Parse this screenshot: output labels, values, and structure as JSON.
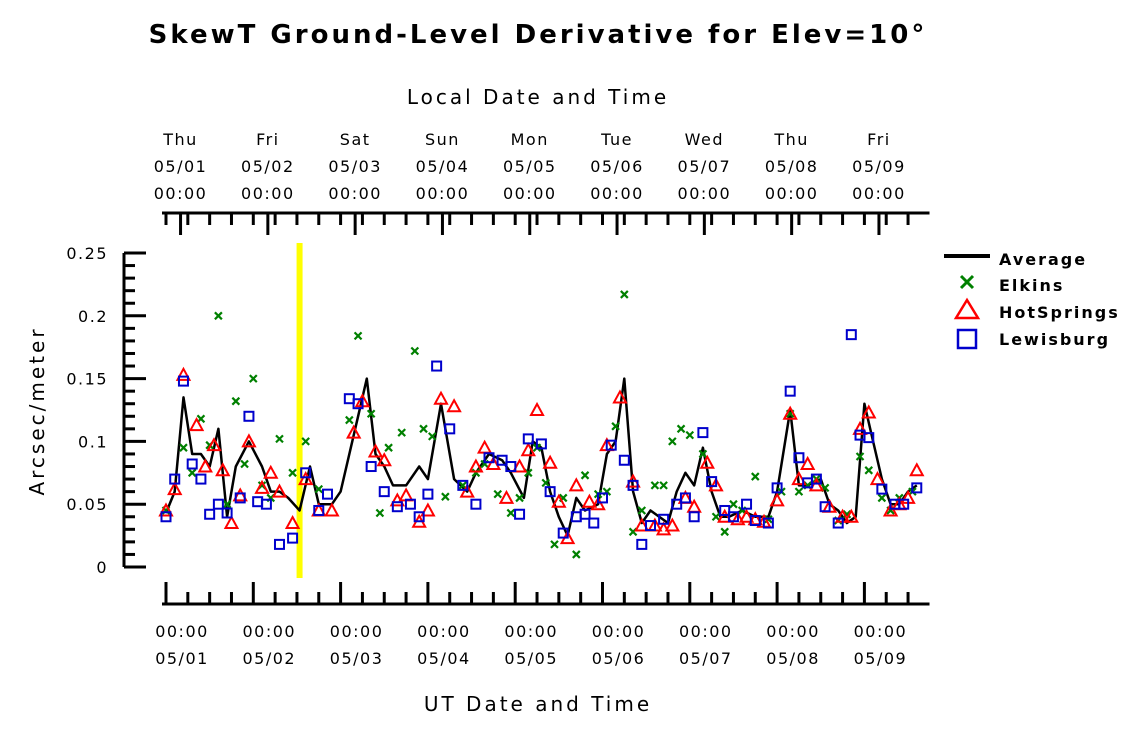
{
  "chart_data": {
    "type": "scatter",
    "title": "SkewT Ground-Level Derivative for Elev=10°",
    "xlabel": "UT Date and Time",
    "xlabel_top": "Local Date and Time",
    "ylabel": "Arcsec/meter",
    "ylim": [
      0,
      0.25
    ],
    "yticks": [
      "0",
      "0.05",
      "0.1",
      "0.15",
      "0.2",
      "0.25"
    ],
    "xlim_days": [
      0,
      8.7
    ],
    "grid": false,
    "legend_position": "right",
    "x_bottom_labels": [
      {
        "time": "00:00",
        "date": "05/01"
      },
      {
        "time": "00:00",
        "date": "05/02"
      },
      {
        "time": "00:00",
        "date": "05/03"
      },
      {
        "time": "00:00",
        "date": "05/04"
      },
      {
        "time": "00:00",
        "date": "05/05"
      },
      {
        "time": "00:00",
        "date": "05/06"
      },
      {
        "time": "00:00",
        "date": "05/07"
      },
      {
        "time": "00:00",
        "date": "05/08"
      },
      {
        "time": "00:00",
        "date": "05/09"
      }
    ],
    "x_top_labels": [
      {
        "day": "Thu",
        "date": "05/01",
        "time": "00:00"
      },
      {
        "day": "Fri",
        "date": "05/02",
        "time": "00:00"
      },
      {
        "day": "Sat",
        "date": "05/03",
        "time": "00:00"
      },
      {
        "day": "Sun",
        "date": "05/04",
        "time": "00:00"
      },
      {
        "day": "Mon",
        "date": "05/05",
        "time": "00:00"
      },
      {
        "day": "Tue",
        "date": "05/06",
        "time": "00:00"
      },
      {
        "day": "Wed",
        "date": "05/07",
        "time": "00:00"
      },
      {
        "day": "Thu",
        "date": "05/08",
        "time": "00:00"
      },
      {
        "day": "Fri",
        "date": "05/09",
        "time": "00:00"
      }
    ],
    "marker_line": {
      "x": 1.53,
      "color": "#ffff00"
    },
    "series": [
      {
        "name": "Average",
        "style": "line",
        "color": "#000000",
        "points": [
          [
            0,
            0.043
          ],
          [
            0.1,
            0.06
          ],
          [
            0.2,
            0.135
          ],
          [
            0.3,
            0.09
          ],
          [
            0.4,
            0.09
          ],
          [
            0.5,
            0.08
          ],
          [
            0.6,
            0.11
          ],
          [
            0.7,
            0.04
          ],
          [
            0.8,
            0.08
          ],
          [
            0.95,
            0.1
          ],
          [
            1.1,
            0.08
          ],
          [
            1.2,
            0.06
          ],
          [
            1.3,
            0.06
          ],
          [
            1.4,
            0.055
          ],
          [
            1.53,
            0.045
          ],
          [
            1.65,
            0.08
          ],
          [
            1.75,
            0.05
          ],
          [
            1.9,
            0.05
          ],
          [
            2.0,
            0.06
          ],
          [
            2.2,
            0.12
          ],
          [
            2.3,
            0.15
          ],
          [
            2.4,
            0.09
          ],
          [
            2.5,
            0.08
          ],
          [
            2.6,
            0.065
          ],
          [
            2.75,
            0.065
          ],
          [
            2.9,
            0.08
          ],
          [
            3.0,
            0.07
          ],
          [
            3.15,
            0.13
          ],
          [
            3.3,
            0.07
          ],
          [
            3.45,
            0.06
          ],
          [
            3.55,
            0.075
          ],
          [
            3.7,
            0.09
          ],
          [
            3.85,
            0.085
          ],
          [
            3.95,
            0.075
          ],
          [
            4.1,
            0.055
          ],
          [
            4.2,
            0.1
          ],
          [
            4.3,
            0.095
          ],
          [
            4.4,
            0.06
          ],
          [
            4.5,
            0.04
          ],
          [
            4.6,
            0.025
          ],
          [
            4.7,
            0.055
          ],
          [
            4.8,
            0.045
          ],
          [
            4.95,
            0.05
          ],
          [
            5.05,
            0.09
          ],
          [
            5.15,
            0.1
          ],
          [
            5.25,
            0.15
          ],
          [
            5.35,
            0.06
          ],
          [
            5.45,
            0.035
          ],
          [
            5.55,
            0.045
          ],
          [
            5.65,
            0.04
          ],
          [
            5.75,
            0.035
          ],
          [
            5.85,
            0.06
          ],
          [
            5.95,
            0.075
          ],
          [
            6.05,
            0.065
          ],
          [
            6.15,
            0.095
          ],
          [
            6.25,
            0.06
          ],
          [
            6.35,
            0.04
          ],
          [
            6.45,
            0.04
          ],
          [
            6.6,
            0.045
          ],
          [
            6.75,
            0.04
          ],
          [
            6.9,
            0.04
          ],
          [
            7.0,
            0.06
          ],
          [
            7.15,
            0.125
          ],
          [
            7.25,
            0.065
          ],
          [
            7.35,
            0.065
          ],
          [
            7.5,
            0.07
          ],
          [
            7.6,
            0.05
          ],
          [
            7.7,
            0.045
          ],
          [
            7.8,
            0.035
          ],
          [
            7.9,
            0.04
          ],
          [
            8.0,
            0.13
          ],
          [
            8.1,
            0.1
          ],
          [
            8.2,
            0.07
          ],
          [
            8.3,
            0.05
          ],
          [
            8.4,
            0.05
          ],
          [
            8.5,
            0.06
          ],
          [
            8.6,
            0.065
          ]
        ]
      },
      {
        "name": "Elkins",
        "style": "x",
        "color": "#008000",
        "points": [
          [
            0.0,
            0.045
          ],
          [
            0.2,
            0.095
          ],
          [
            0.3,
            0.075
          ],
          [
            0.4,
            0.118
          ],
          [
            0.5,
            0.097
          ],
          [
            0.6,
            0.2
          ],
          [
            0.7,
            0.05
          ],
          [
            0.8,
            0.132
          ],
          [
            0.9,
            0.082
          ],
          [
            1.0,
            0.15
          ],
          [
            1.1,
            0.065
          ],
          [
            1.2,
            0.055
          ],
          [
            1.3,
            0.102
          ],
          [
            1.45,
            0.075
          ],
          [
            1.6,
            0.1
          ],
          [
            1.75,
            0.062
          ],
          [
            2.1,
            0.117
          ],
          [
            2.2,
            0.184
          ],
          [
            2.35,
            0.122
          ],
          [
            2.45,
            0.043
          ],
          [
            2.55,
            0.095
          ],
          [
            2.7,
            0.107
          ],
          [
            2.85,
            0.172
          ],
          [
            2.95,
            0.11
          ],
          [
            3.05,
            0.104
          ],
          [
            3.2,
            0.056
          ],
          [
            3.4,
            0.065
          ],
          [
            3.55,
            0.075
          ],
          [
            3.65,
            0.082
          ],
          [
            3.8,
            0.058
          ],
          [
            3.95,
            0.043
          ],
          [
            4.05,
            0.055
          ],
          [
            4.15,
            0.075
          ],
          [
            4.25,
            0.095
          ],
          [
            4.35,
            0.067
          ],
          [
            4.45,
            0.018
          ],
          [
            4.55,
            0.055
          ],
          [
            4.7,
            0.01
          ],
          [
            4.8,
            0.073
          ],
          [
            4.95,
            0.058
          ],
          [
            5.05,
            0.06
          ],
          [
            5.15,
            0.112
          ],
          [
            5.25,
            0.217
          ],
          [
            5.35,
            0.028
          ],
          [
            5.45,
            0.045
          ],
          [
            5.6,
            0.065
          ],
          [
            5.7,
            0.065
          ],
          [
            5.8,
            0.1
          ],
          [
            5.9,
            0.11
          ],
          [
            6.0,
            0.105
          ],
          [
            6.15,
            0.09
          ],
          [
            6.3,
            0.04
          ],
          [
            6.4,
            0.028
          ],
          [
            6.5,
            0.05
          ],
          [
            6.6,
            0.045
          ],
          [
            6.75,
            0.072
          ],
          [
            6.9,
            0.038
          ],
          [
            7.05,
            0.06
          ],
          [
            7.15,
            0.122
          ],
          [
            7.25,
            0.06
          ],
          [
            7.35,
            0.065
          ],
          [
            7.45,
            0.07
          ],
          [
            7.55,
            0.063
          ],
          [
            7.7,
            0.037
          ],
          [
            7.8,
            0.042
          ],
          [
            7.95,
            0.088
          ],
          [
            8.05,
            0.077
          ],
          [
            8.2,
            0.055
          ],
          [
            8.3,
            0.045
          ],
          [
            8.4,
            0.055
          ],
          [
            8.55,
            0.06
          ]
        ]
      },
      {
        "name": "HotSprings",
        "style": "triangle",
        "color": "#ff0000",
        "points": [
          [
            0.0,
            0.045
          ],
          [
            0.1,
            0.062
          ],
          [
            0.2,
            0.153
          ],
          [
            0.35,
            0.113
          ],
          [
            0.45,
            0.08
          ],
          [
            0.55,
            0.097
          ],
          [
            0.65,
            0.077
          ],
          [
            0.75,
            0.035
          ],
          [
            0.85,
            0.057
          ],
          [
            0.95,
            0.1
          ],
          [
            1.1,
            0.063
          ],
          [
            1.2,
            0.075
          ],
          [
            1.3,
            0.06
          ],
          [
            1.45,
            0.035
          ],
          [
            1.6,
            0.07
          ],
          [
            1.75,
            0.045
          ],
          [
            1.9,
            0.045
          ],
          [
            2.15,
            0.107
          ],
          [
            2.25,
            0.132
          ],
          [
            2.4,
            0.092
          ],
          [
            2.5,
            0.085
          ],
          [
            2.65,
            0.053
          ],
          [
            2.75,
            0.057
          ],
          [
            2.9,
            0.036
          ],
          [
            3.0,
            0.045
          ],
          [
            3.15,
            0.134
          ],
          [
            3.3,
            0.128
          ],
          [
            3.45,
            0.06
          ],
          [
            3.55,
            0.08
          ],
          [
            3.65,
            0.095
          ],
          [
            3.75,
            0.082
          ],
          [
            3.9,
            0.055
          ],
          [
            4.05,
            0.08
          ],
          [
            4.15,
            0.093
          ],
          [
            4.25,
            0.125
          ],
          [
            4.4,
            0.083
          ],
          [
            4.5,
            0.052
          ],
          [
            4.6,
            0.023
          ],
          [
            4.7,
            0.065
          ],
          [
            4.85,
            0.052
          ],
          [
            4.95,
            0.05
          ],
          [
            5.05,
            0.097
          ],
          [
            5.2,
            0.135
          ],
          [
            5.35,
            0.068
          ],
          [
            5.45,
            0.033
          ],
          [
            5.6,
            0.033
          ],
          [
            5.7,
            0.03
          ],
          [
            5.8,
            0.033
          ],
          [
            5.95,
            0.055
          ],
          [
            6.05,
            0.048
          ],
          [
            6.2,
            0.083
          ],
          [
            6.3,
            0.065
          ],
          [
            6.4,
            0.04
          ],
          [
            6.55,
            0.038
          ],
          [
            6.65,
            0.04
          ],
          [
            6.75,
            0.038
          ],
          [
            6.85,
            0.036
          ],
          [
            7.0,
            0.053
          ],
          [
            7.15,
            0.122
          ],
          [
            7.25,
            0.07
          ],
          [
            7.35,
            0.082
          ],
          [
            7.45,
            0.065
          ],
          [
            7.6,
            0.048
          ],
          [
            7.75,
            0.04
          ],
          [
            7.85,
            0.04
          ],
          [
            7.95,
            0.11
          ],
          [
            8.05,
            0.123
          ],
          [
            8.15,
            0.07
          ],
          [
            8.3,
            0.045
          ],
          [
            8.4,
            0.05
          ],
          [
            8.5,
            0.055
          ],
          [
            8.6,
            0.077
          ]
        ]
      },
      {
        "name": "Lewisburg",
        "style": "square",
        "color": "#0000cc",
        "points": [
          [
            0.0,
            0.04
          ],
          [
            0.1,
            0.07
          ],
          [
            0.2,
            0.148
          ],
          [
            0.3,
            0.082
          ],
          [
            0.4,
            0.07
          ],
          [
            0.5,
            0.042
          ],
          [
            0.6,
            0.05
          ],
          [
            0.7,
            0.043
          ],
          [
            0.85,
            0.055
          ],
          [
            0.95,
            0.12
          ],
          [
            1.05,
            0.052
          ],
          [
            1.15,
            0.05
          ],
          [
            1.3,
            0.018
          ],
          [
            1.45,
            0.023
          ],
          [
            1.6,
            0.075
          ],
          [
            1.75,
            0.045
          ],
          [
            1.85,
            0.058
          ],
          [
            2.1,
            0.134
          ],
          [
            2.2,
            0.13
          ],
          [
            2.35,
            0.08
          ],
          [
            2.5,
            0.06
          ],
          [
            2.65,
            0.048
          ],
          [
            2.8,
            0.05
          ],
          [
            2.9,
            0.04
          ],
          [
            3.0,
            0.058
          ],
          [
            3.1,
            0.16
          ],
          [
            3.25,
            0.11
          ],
          [
            3.4,
            0.065
          ],
          [
            3.55,
            0.05
          ],
          [
            3.7,
            0.087
          ],
          [
            3.85,
            0.085
          ],
          [
            3.95,
            0.08
          ],
          [
            4.05,
            0.042
          ],
          [
            4.15,
            0.102
          ],
          [
            4.3,
            0.098
          ],
          [
            4.4,
            0.06
          ],
          [
            4.55,
            0.027
          ],
          [
            4.7,
            0.04
          ],
          [
            4.8,
            0.042
          ],
          [
            4.9,
            0.035
          ],
          [
            5.0,
            0.055
          ],
          [
            5.1,
            0.097
          ],
          [
            5.25,
            0.085
          ],
          [
            5.35,
            0.065
          ],
          [
            5.45,
            0.018
          ],
          [
            5.55,
            0.033
          ],
          [
            5.7,
            0.038
          ],
          [
            5.85,
            0.05
          ],
          [
            5.95,
            0.055
          ],
          [
            6.05,
            0.04
          ],
          [
            6.15,
            0.107
          ],
          [
            6.25,
            0.068
          ],
          [
            6.4,
            0.045
          ],
          [
            6.5,
            0.04
          ],
          [
            6.65,
            0.05
          ],
          [
            6.75,
            0.037
          ],
          [
            6.9,
            0.035
          ],
          [
            7.0,
            0.063
          ],
          [
            7.15,
            0.14
          ],
          [
            7.25,
            0.087
          ],
          [
            7.35,
            0.067
          ],
          [
            7.45,
            0.07
          ],
          [
            7.55,
            0.048
          ],
          [
            7.7,
            0.035
          ],
          [
            7.85,
            0.185
          ],
          [
            7.95,
            0.105
          ],
          [
            8.05,
            0.103
          ],
          [
            8.2,
            0.062
          ],
          [
            8.35,
            0.05
          ],
          [
            8.45,
            0.05
          ],
          [
            8.6,
            0.063
          ]
        ]
      }
    ]
  }
}
